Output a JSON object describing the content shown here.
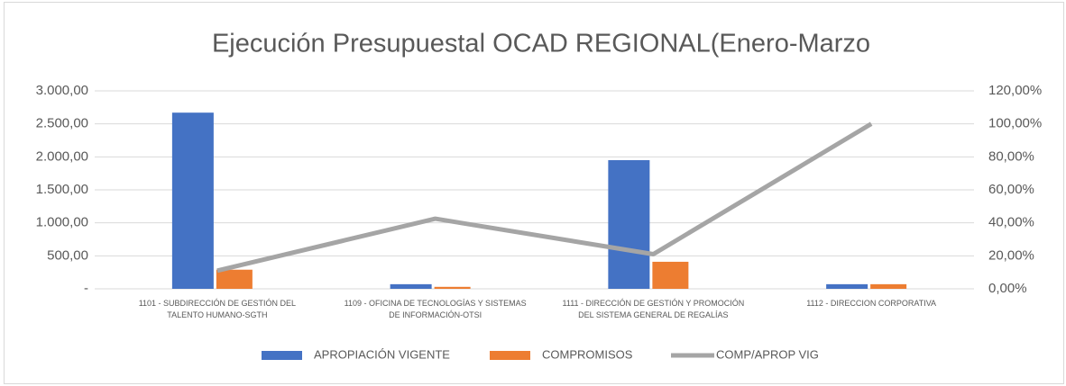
{
  "chart_data": {
    "type": "bar_line",
    "title": "Ejecución Presupuestal OCAD REGIONAL(Enero-Marzo",
    "categories": [
      "1101 - SUBDIRECCIÓN DE GESTIÓN DEL TALENTO HUMANO-SGTH",
      "1109 - OFICINA DE TECNOLOGÍAS Y SISTEMAS DE INFORMACIÓN-OTSI",
      "1111 - DIRECCIÓN DE GESTIÓN Y PROMOCIÓN DEL SISTEMA GENERAL DE REGALÍAS",
      "1112 - DIRECCION CORPORATIVA"
    ],
    "series": [
      {
        "name": "APROPIACIÓN VIGENTE",
        "color": "#4472c4",
        "type": "bar",
        "values": [
          2670,
          70,
          1950,
          70
        ]
      },
      {
        "name": "COMPROMISOS",
        "color": "#ed7d31",
        "type": "bar",
        "values": [
          290,
          30,
          410,
          70
        ]
      },
      {
        "name": "COMP/APROP VIG",
        "color": "#a5a5a5",
        "type": "line",
        "axis": "y2",
        "values": [
          11,
          42.5,
          21,
          100
        ]
      }
    ],
    "ylim": [
      0,
      3000
    ],
    "yticks": [
      {
        "value": 0,
        "label": "-"
      },
      {
        "value": 500,
        "label": "500,00"
      },
      {
        "value": 1000,
        "label": "1.000,00"
      },
      {
        "value": 1500,
        "label": "1.500,00"
      },
      {
        "value": 2000,
        "label": "2.000,00"
      },
      {
        "value": 2500,
        "label": "2.500,00"
      },
      {
        "value": 3000,
        "label": "3.000,00"
      }
    ],
    "y2lim": [
      0,
      120
    ],
    "y2ticks": [
      {
        "value": 0,
        "label": "0,00%"
      },
      {
        "value": 20,
        "label": "20,00%"
      },
      {
        "value": 40,
        "label": "40,00%"
      },
      {
        "value": 60,
        "label": "60,00%"
      },
      {
        "value": 80,
        "label": "80,00%"
      },
      {
        "value": 100,
        "label": "100,00%"
      },
      {
        "value": 120,
        "label": "120,00%"
      }
    ],
    "grid": true,
    "legend": "bottom"
  }
}
